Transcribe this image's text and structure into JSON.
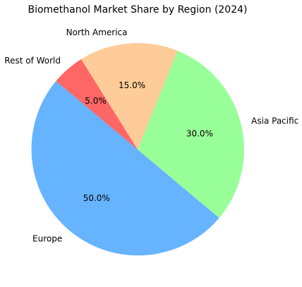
{
  "chart_data": {
    "type": "pie",
    "title": "Biomethanol Market Share by Region (2024)",
    "slices": [
      {
        "label": "Europe",
        "value": 50.0,
        "pct_label": "50.0%",
        "color": "#66b3ff"
      },
      {
        "label": "Asia Pacific",
        "value": 30.0,
        "pct_label": "30.0%",
        "color": "#99ff99"
      },
      {
        "label": "North America",
        "value": 15.0,
        "pct_label": "15.0%",
        "color": "#ffcc99"
      },
      {
        "label": "Rest of World",
        "value": 5.0,
        "pct_label": "5.0%",
        "color": "#ff6666"
      }
    ],
    "start_angle_deg": 140,
    "direction": "counterclockwise"
  }
}
